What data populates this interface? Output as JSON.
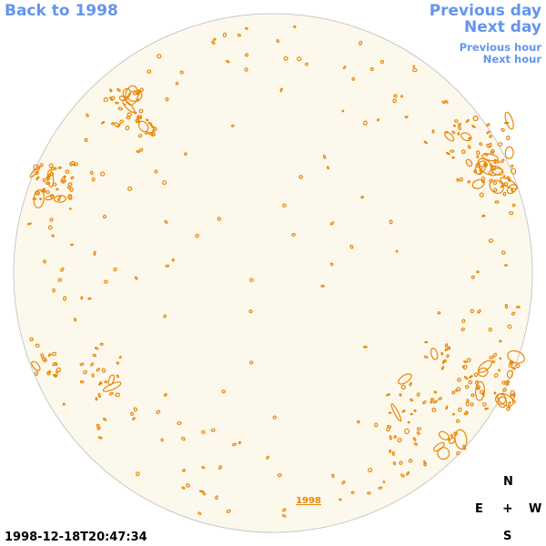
{
  "nav": {
    "back": "Back to 1998",
    "previous_day": "Previous day",
    "next_day": "Next day",
    "previous_hour": "Previous hour",
    "next_hour": "Next hour"
  },
  "timestamp": "1998-12-18T20:47:34",
  "disk": {
    "label": "1998",
    "fill_color": "#fdf8ec",
    "contour_color": "#e8870a",
    "limb_color": "#c8c8c8"
  },
  "compass": {
    "north": "N",
    "east": "E",
    "center": "+",
    "west": "W",
    "south": "S"
  },
  "colors": {
    "link": "#6495ed",
    "text": "#000000"
  }
}
